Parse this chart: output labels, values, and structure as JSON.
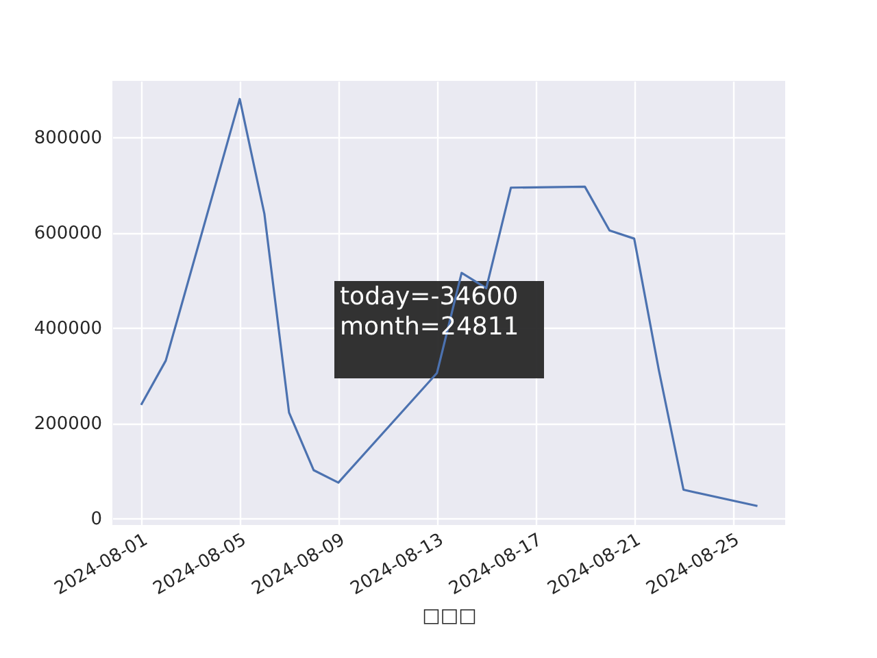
{
  "chart_data": {
    "type": "line",
    "xlabel": "□□□",
    "x": [
      "2024-08-01",
      "2024-08-02",
      "2024-08-05",
      "2024-08-06",
      "2024-08-07",
      "2024-08-08",
      "2024-08-09",
      "2024-08-13",
      "2024-08-14",
      "2024-08-15",
      "2024-08-16",
      "2024-08-19",
      "2024-08-20",
      "2024-08-21",
      "2024-08-22",
      "2024-08-23",
      "2024-08-26"
    ],
    "series": [
      {
        "color": "#4c72b0",
        "values": [
          238000,
          331000,
          880000,
          639000,
          222000,
          101000,
          75000,
          305000,
          515000,
          483000,
          694000,
          696000,
          604000,
          587000,
          311000,
          60000,
          26000
        ]
      }
    ],
    "xlim": [
      "2024-07-30T20:00",
      "2024-08-27T03:00"
    ],
    "xticks": [
      {
        "value": "2024-08-01",
        "label": "2024-08-01"
      },
      {
        "value": "2024-08-05",
        "label": "2024-08-05"
      },
      {
        "value": "2024-08-09",
        "label": "2024-08-09"
      },
      {
        "value": "2024-08-13",
        "label": "2024-08-13"
      },
      {
        "value": "2024-08-17",
        "label": "2024-08-17"
      },
      {
        "value": "2024-08-21",
        "label": "2024-08-21"
      },
      {
        "value": "2024-08-25",
        "label": "2024-08-25"
      }
    ],
    "ylim": [
      -14000,
      918000
    ],
    "yticks": [
      0,
      200000,
      400000,
      600000,
      800000
    ],
    "grid": true,
    "marker": "none",
    "line_style": "solid",
    "annotations": [
      "today=-34600\nmonth=24811"
    ]
  }
}
